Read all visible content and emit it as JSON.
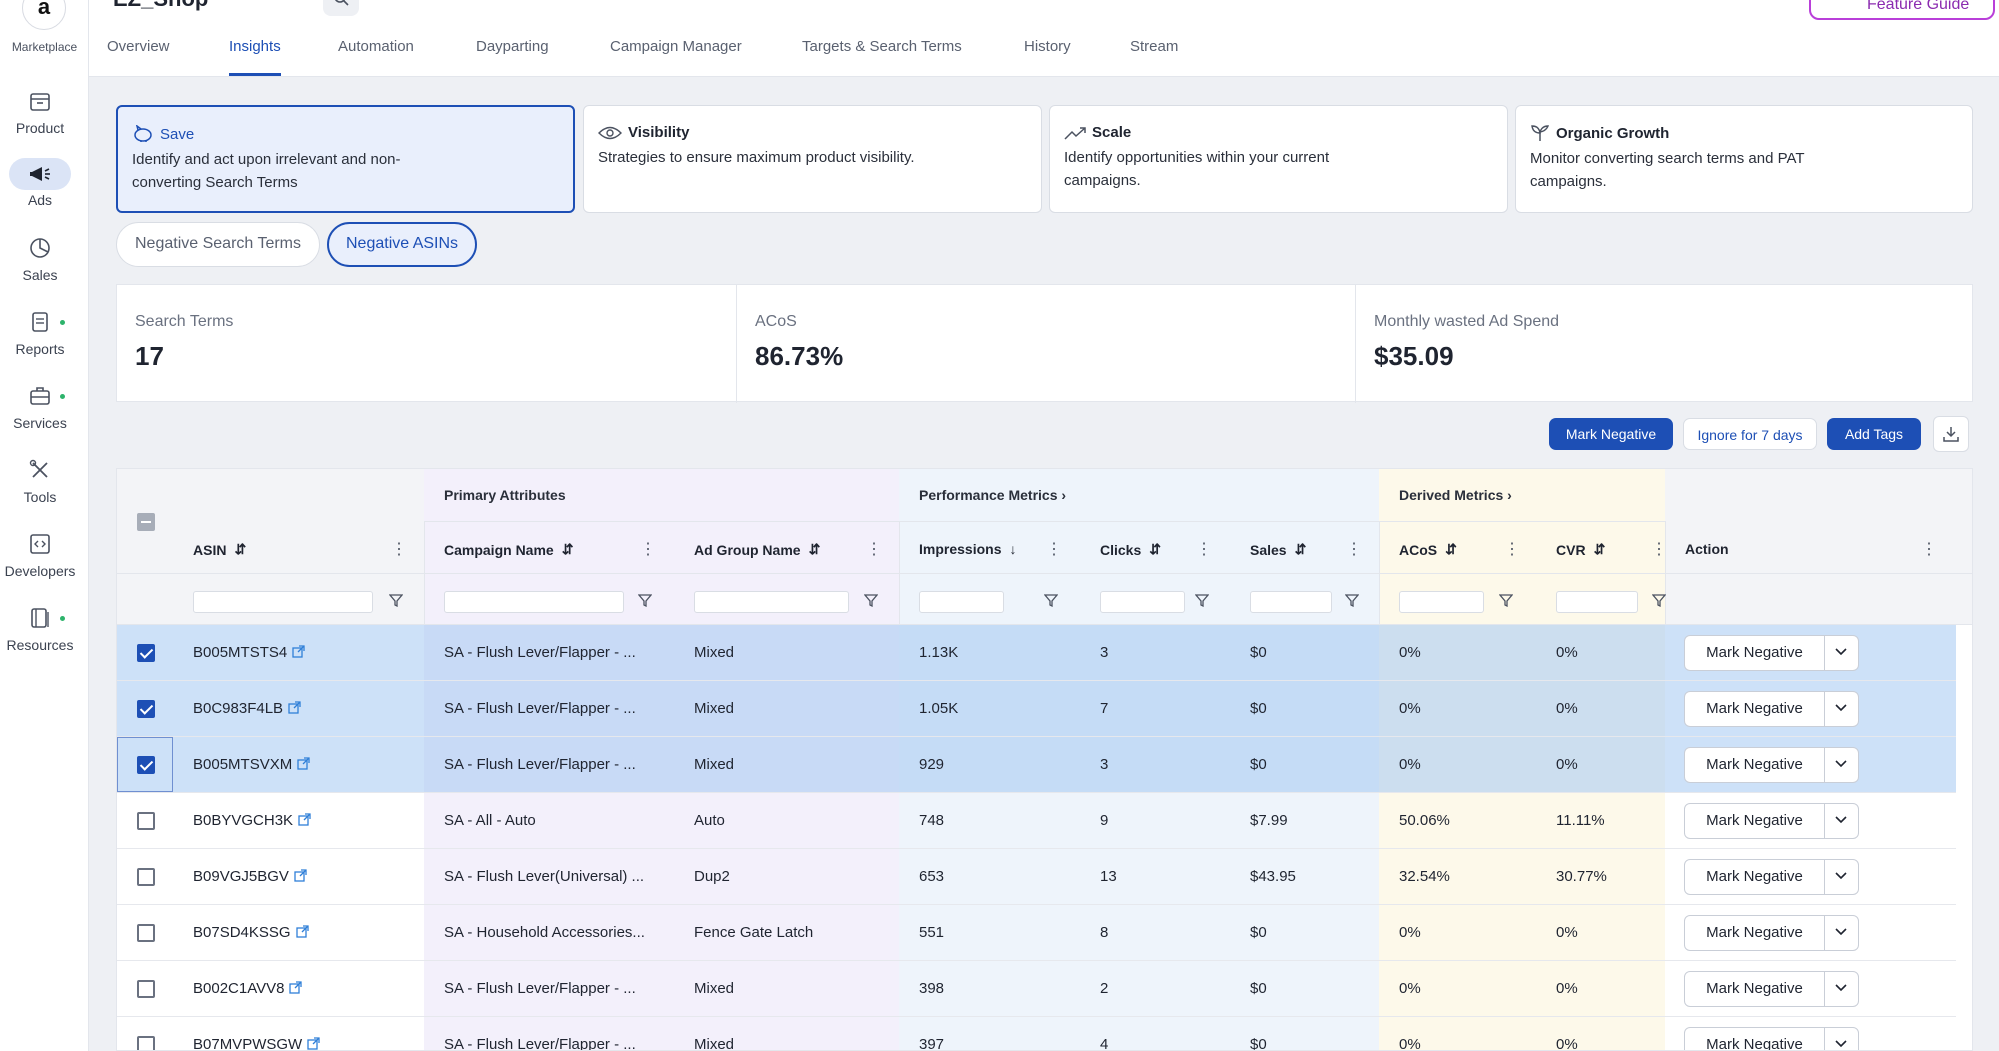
{
  "sidebar": {
    "logo_glyph": "a",
    "marketplace_label": "Marketplace",
    "items": [
      {
        "label": "Product",
        "icon": "box-icon",
        "dot": false
      },
      {
        "label": "Ads",
        "icon": "megaphone-icon",
        "dot": false,
        "active": true
      },
      {
        "label": "Sales",
        "icon": "pie-chart-icon",
        "dot": false
      },
      {
        "label": "Reports",
        "icon": "report-icon",
        "dot": true
      },
      {
        "label": "Services",
        "icon": "briefcase-icon",
        "dot": true
      },
      {
        "label": "Tools",
        "icon": "tools-icon",
        "dot": false
      },
      {
        "label": "Developers",
        "icon": "code-icon",
        "dot": false
      },
      {
        "label": "Resources",
        "icon": "book-icon",
        "dot": true
      }
    ]
  },
  "header": {
    "shop_name": "EZ_Shop",
    "feature_guide": "Feature Guide",
    "tabs": [
      "Overview",
      "Insights",
      "Automation",
      "Dayparting",
      "Campaign Manager",
      "Targets & Search Terms",
      "History",
      "Stream"
    ],
    "active_tab": "Insights"
  },
  "cards": [
    {
      "title": "Save",
      "icon": "piggy-bank-icon",
      "desc": "Identify and act upon irrelevant and non-converting Search Terms"
    },
    {
      "title": "Visibility",
      "icon": "eye-icon",
      "desc": "Strategies to ensure maximum product visibility."
    },
    {
      "title": "Scale",
      "icon": "trend-up-icon",
      "desc": "Identify opportunities within your current campaigns."
    },
    {
      "title": "Organic Growth",
      "icon": "sprout-icon",
      "desc": "Monitor converting search terms and PAT campaigns."
    }
  ],
  "subtabs": {
    "negative_search_terms": "Negative Search Terms",
    "negative_asins": "Negative ASINs"
  },
  "stats": [
    {
      "label": "Search Terms",
      "value": "17"
    },
    {
      "label": "ACoS",
      "value": "86.73%"
    },
    {
      "label": "Monthly wasted Ad Spend",
      "value": "$35.09"
    }
  ],
  "actions": {
    "mark_negative": "Mark Negative",
    "ignore": "Ignore for 7 days",
    "add_tags": "Add Tags"
  },
  "table": {
    "groups": {
      "primary": "Primary Attributes",
      "performance": "Performance Metrics",
      "derived": "Derived Metrics"
    },
    "columns": {
      "asin": "ASIN",
      "campaign": "Campaign Name",
      "ad_group": "Ad Group Name",
      "impressions": "Impressions",
      "clicks": "Clicks",
      "sales": "Sales",
      "acos": "ACoS",
      "cvr": "CVR",
      "action": "Action"
    },
    "action_label": "Mark Negative",
    "rows": [
      {
        "checked": true,
        "asin": "B005MTSTS4",
        "campaign": "SA - Flush Lever/Flapper - ...",
        "ad_group": "Mixed",
        "impressions": "1.13K",
        "clicks": "3",
        "sales": "$0",
        "acos": "0%",
        "cvr": "0%"
      },
      {
        "checked": true,
        "asin": "B0C983F4LB",
        "campaign": "SA - Flush Lever/Flapper - ...",
        "ad_group": "Mixed",
        "impressions": "1.05K",
        "clicks": "7",
        "sales": "$0",
        "acos": "0%",
        "cvr": "0%"
      },
      {
        "checked": true,
        "asin": "B005MTSVXM",
        "campaign": "SA - Flush Lever/Flapper - ...",
        "ad_group": "Mixed",
        "impressions": "929",
        "clicks": "3",
        "sales": "$0",
        "acos": "0%",
        "cvr": "0%"
      },
      {
        "checked": false,
        "asin": "B0BYVGCH3K",
        "campaign": "SA - All - Auto",
        "ad_group": "Auto",
        "impressions": "748",
        "clicks": "9",
        "sales": "$7.99",
        "acos": "50.06%",
        "cvr": "11.11%"
      },
      {
        "checked": false,
        "asin": "B09VGJ5BGV",
        "campaign": "SA - Flush Lever(Universal) ...",
        "ad_group": "Dup2",
        "impressions": "653",
        "clicks": "13",
        "sales": "$43.95",
        "acos": "32.54%",
        "cvr": "30.77%"
      },
      {
        "checked": false,
        "asin": "B07SD4KSSG",
        "campaign": "SA - Household Accessories...",
        "ad_group": "Fence Gate Latch",
        "impressions": "551",
        "clicks": "8",
        "sales": "$0",
        "acos": "0%",
        "cvr": "0%"
      },
      {
        "checked": false,
        "asin": "B002C1AVV8",
        "campaign": "SA - Flush Lever/Flapper - ...",
        "ad_group": "Mixed",
        "impressions": "398",
        "clicks": "2",
        "sales": "$0",
        "acos": "0%",
        "cvr": "0%"
      },
      {
        "checked": false,
        "asin": "B07MVPWSGW",
        "campaign": "SA - Flush Lever/Flapper - ...",
        "ad_group": "Mixed",
        "impressions": "397",
        "clicks": "4",
        "sales": "$0",
        "acos": "0%",
        "cvr": "0%"
      }
    ]
  },
  "colors": {
    "accent": "#1d4fb5",
    "primary_group_bg": "#f3f0fb",
    "performance_group_bg": "#eef4fb",
    "derived_group_bg": "#fdf9ea",
    "selected_row": "#a4c9f3",
    "status_dot": "#2db36b"
  }
}
